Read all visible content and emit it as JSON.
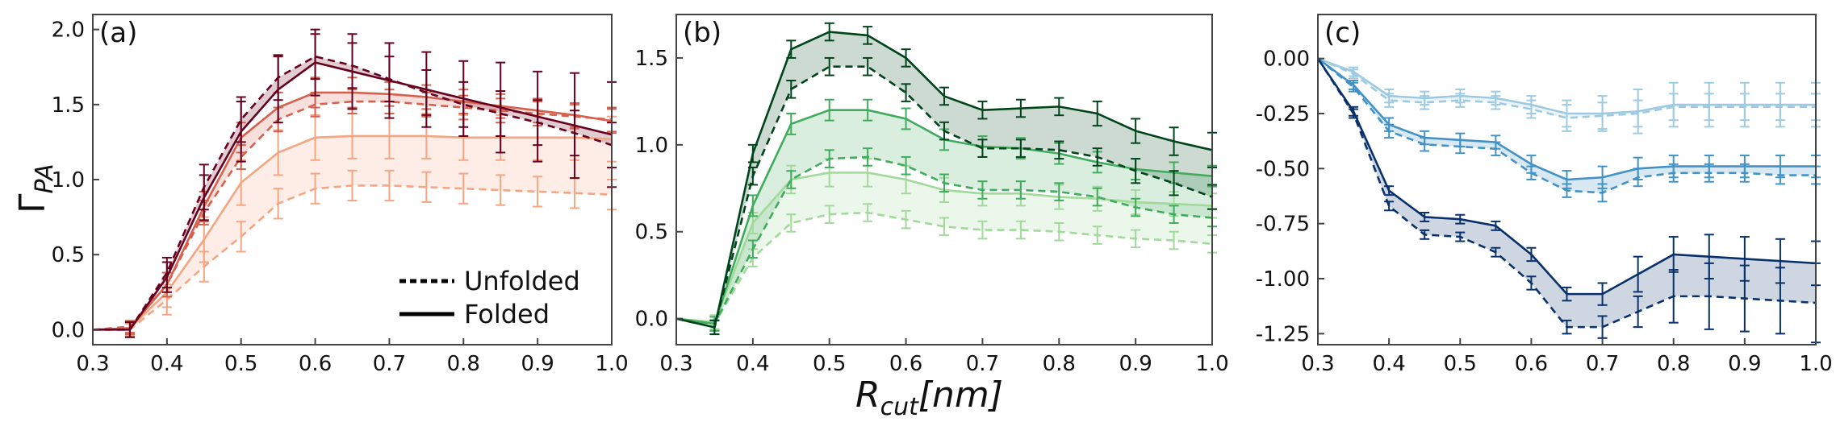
{
  "figure": {
    "ylabel_main": "Γ",
    "ylabel_sub": "PA",
    "xlabel_main": "R",
    "xlabel_sub": "cut",
    "xlabel_unit": "[nm]"
  },
  "legend": {
    "unfolded": "Unfolded",
    "folded": "Folded"
  },
  "chart_data": [
    {
      "type": "line",
      "title": "(a)",
      "xlabel": "R_cut [nm]",
      "ylabel": "Γ_PA",
      "xlim": [
        0.3,
        1.0
      ],
      "ylim": [
        -0.1,
        2.1
      ],
      "xticks": [
        "0.3",
        "0.4",
        "0.5",
        "0.6",
        "0.7",
        "0.8",
        "0.9",
        "1.0"
      ],
      "yticks": [
        "0.0",
        "0.5",
        "1.0",
        "1.5",
        "2.0"
      ],
      "ytick_values": [
        0.0,
        0.5,
        1.0,
        1.5,
        2.0
      ],
      "x": [
        0.3,
        0.35,
        0.4,
        0.45,
        0.5,
        0.55,
        0.6,
        0.65,
        0.7,
        0.75,
        0.8,
        0.85,
        0.9,
        0.95,
        1.0
      ],
      "pairs": [
        {
          "color": "#f4a582",
          "folded": {
            "name": "Folded",
            "values": [
              0,
              0.01,
              0.25,
              0.6,
              0.98,
              1.18,
              1.28,
              1.29,
              1.29,
              1.29,
              1.28,
              1.28,
              1.28,
              1.28,
              1.27
            ],
            "err": [
              0,
              0.04,
              0.1,
              0.15,
              0.15,
              0.15,
              0.15,
              0.15,
              0.15,
              0.15,
              0.15,
              0.15,
              0.15,
              0.15,
              0.15
            ]
          },
          "unfolded": {
            "name": "Unfolded",
            "values": [
              0,
              0.0,
              0.2,
              0.42,
              0.62,
              0.84,
              0.94,
              0.96,
              0.96,
              0.95,
              0.94,
              0.93,
              0.92,
              0.91,
              0.9
            ],
            "err": [
              0,
              0.04,
              0.1,
              0.1,
              0.1,
              0.1,
              0.1,
              0.1,
              0.1,
              0.1,
              0.1,
              0.1,
              0.1,
              0.1,
              0.1
            ]
          }
        },
        {
          "color": "#d6604d",
          "folded": {
            "name": "Folded",
            "values": [
              0,
              0.01,
              0.3,
              0.82,
              1.28,
              1.48,
              1.58,
              1.58,
              1.57,
              1.55,
              1.52,
              1.49,
              1.46,
              1.43,
              1.39
            ],
            "err": [
              0,
              0.04,
              0.08,
              0.1,
              0.1,
              0.1,
              0.1,
              0.1,
              0.08,
              0.08,
              0.08,
              0.08,
              0.08,
              0.08,
              0.08
            ]
          },
          "unfolded": {
            "name": "Unfolded",
            "values": [
              0,
              0.02,
              0.3,
              0.78,
              1.15,
              1.4,
              1.5,
              1.52,
              1.52,
              1.5,
              1.48,
              1.46,
              1.44,
              1.42,
              1.4
            ],
            "err": [
              0,
              0.04,
              0.08,
              0.08,
              0.08,
              0.08,
              0.08,
              0.08,
              0.08,
              0.08,
              0.08,
              0.08,
              0.08,
              0.08,
              0.08
            ]
          }
        },
        {
          "color": "#67001f",
          "folded": {
            "name": "Folded",
            "values": [
              0,
              0.0,
              0.35,
              0.88,
              1.32,
              1.6,
              1.78,
              1.72,
              1.66,
              1.6,
              1.54,
              1.48,
              1.42,
              1.36,
              1.3
            ],
            "err": [
              0,
              0.05,
              0.1,
              0.15,
              0.2,
              0.22,
              0.22,
              0.25,
              0.25,
              0.25,
              0.25,
              0.3,
              0.3,
              0.35,
              0.35
            ]
          },
          "unfolded": {
            "name": "Unfolded",
            "values": [
              0,
              0.0,
              0.38,
              0.95,
              1.4,
              1.68,
              1.82,
              1.76,
              1.67,
              1.58,
              1.5,
              1.44,
              1.38,
              1.31,
              1.23
            ],
            "err": [
              0,
              0.05,
              0.1,
              0.15,
              0.15,
              0.15,
              0.15,
              0.15,
              0.15,
              0.15,
              0.15,
              0.15,
              0.15,
              0.15,
              0.15
            ]
          }
        }
      ]
    },
    {
      "type": "line",
      "title": "(b)",
      "xlabel": "R_cut [nm]",
      "ylabel": "Γ_PA",
      "xlim": [
        0.3,
        1.0
      ],
      "ylim": [
        -0.15,
        1.75
      ],
      "xticks": [
        "0.3",
        "0.4",
        "0.5",
        "0.6",
        "0.7",
        "0.8",
        "0.9",
        "1.0"
      ],
      "yticks": [
        "0.0",
        "0.5",
        "1.0",
        "1.5"
      ],
      "ytick_values": [
        0.0,
        0.5,
        1.0,
        1.5
      ],
      "x": [
        0.3,
        0.35,
        0.4,
        0.45,
        0.5,
        0.55,
        0.6,
        0.65,
        0.7,
        0.75,
        0.8,
        0.85,
        0.9,
        0.95,
        1.0
      ],
      "pairs": [
        {
          "color": "#a1d99b",
          "folded": {
            "name": "Folded",
            "values": [
              0,
              -0.02,
              0.55,
              0.8,
              0.84,
              0.84,
              0.8,
              0.74,
              0.72,
              0.72,
              0.7,
              0.69,
              0.67,
              0.66,
              0.65
            ],
            "err": [
              0,
              0.04,
              0.06,
              0.08,
              0.08,
              0.08,
              0.08,
              0.07,
              0.07,
              0.07,
              0.07,
              0.07,
              0.07,
              0.07,
              0.07
            ]
          },
          "unfolded": {
            "name": "Unfolded",
            "values": [
              0,
              -0.03,
              0.35,
              0.55,
              0.6,
              0.61,
              0.57,
              0.53,
              0.51,
              0.51,
              0.5,
              0.48,
              0.46,
              0.45,
              0.43
            ],
            "err": [
              0,
              0.04,
              0.05,
              0.05,
              0.05,
              0.05,
              0.05,
              0.05,
              0.05,
              0.05,
              0.05,
              0.05,
              0.05,
              0.05,
              0.05
            ]
          }
        },
        {
          "color": "#41ab5d",
          "folded": {
            "name": "Folded",
            "values": [
              0,
              -0.03,
              0.65,
              1.12,
              1.2,
              1.2,
              1.15,
              1.03,
              0.99,
              0.98,
              0.95,
              0.9,
              0.86,
              0.84,
              0.82
            ],
            "err": [
              0,
              0.04,
              0.06,
              0.06,
              0.06,
              0.06,
              0.06,
              0.06,
              0.06,
              0.06,
              0.06,
              0.06,
              0.06,
              0.06,
              0.06
            ]
          },
          "unfolded": {
            "name": "Unfolded",
            "values": [
              0,
              -0.03,
              0.4,
              0.8,
              0.92,
              0.93,
              0.88,
              0.78,
              0.74,
              0.74,
              0.73,
              0.7,
              0.64,
              0.6,
              0.58
            ],
            "err": [
              0,
              0.04,
              0.05,
              0.05,
              0.05,
              0.05,
              0.05,
              0.05,
              0.05,
              0.05,
              0.05,
              0.05,
              0.05,
              0.05,
              0.05
            ]
          }
        },
        {
          "color": "#00441b",
          "folded": {
            "name": "Folded",
            "values": [
              0,
              -0.05,
              0.95,
              1.55,
              1.65,
              1.63,
              1.5,
              1.28,
              1.2,
              1.21,
              1.22,
              1.18,
              1.08,
              1.02,
              0.97
            ],
            "err": [
              0,
              0.04,
              0.05,
              0.05,
              0.05,
              0.05,
              0.05,
              0.05,
              0.05,
              0.05,
              0.05,
              0.07,
              0.07,
              0.08,
              0.1
            ]
          },
          "unfolded": {
            "name": "Unfolded",
            "values": [
              0,
              -0.05,
              0.82,
              1.32,
              1.45,
              1.45,
              1.3,
              1.08,
              0.98,
              0.98,
              0.97,
              0.93,
              0.85,
              0.78,
              0.7
            ],
            "err": [
              0,
              0.04,
              0.05,
              0.05,
              0.05,
              0.05,
              0.05,
              0.05,
              0.05,
              0.05,
              0.05,
              0.05,
              0.07,
              0.07,
              0.07
            ]
          }
        }
      ]
    },
    {
      "type": "line",
      "title": "(c)",
      "xlabel": "R_cut [nm]",
      "ylabel": "Γ_PA",
      "xlim": [
        0.3,
        1.0
      ],
      "ylim": [
        -1.3,
        0.2
      ],
      "xticks": [
        "0.3",
        "0.4",
        "0.5",
        "0.6",
        "0.7",
        "0.8",
        "0.9",
        "1.0"
      ],
      "yticks": [
        "0.00",
        "-0.25",
        "-0.50",
        "-0.75",
        "-1.00",
        "-1.25"
      ],
      "ytick_values": [
        0.0,
        -0.25,
        -0.5,
        -0.75,
        -1.0,
        -1.25
      ],
      "x": [
        0.3,
        0.35,
        0.4,
        0.45,
        0.5,
        0.55,
        0.6,
        0.65,
        0.7,
        0.75,
        0.8,
        0.85,
        0.9,
        0.95,
        1.0
      ],
      "pairs": [
        {
          "color": "#9ecae1",
          "folded": {
            "name": "Folded",
            "values": [
              0,
              -0.06,
              -0.17,
              -0.18,
              -0.17,
              -0.18,
              -0.21,
              -0.25,
              -0.25,
              -0.24,
              -0.21,
              -0.21,
              -0.21,
              -0.21,
              -0.21
            ],
            "err": [
              0,
              0.02,
              0.03,
              0.03,
              0.03,
              0.03,
              0.04,
              0.06,
              0.08,
              0.1,
              0.1,
              0.1,
              0.1,
              0.1,
              0.1
            ]
          },
          "unfolded": {
            "name": "Unfolded",
            "values": [
              0,
              -0.07,
              -0.19,
              -0.2,
              -0.19,
              -0.2,
              -0.23,
              -0.27,
              -0.26,
              -0.25,
              -0.22,
              -0.22,
              -0.22,
              -0.22,
              -0.22
            ],
            "err": [
              0,
              0.02,
              0.03,
              0.03,
              0.03,
              0.03,
              0.04,
              0.06,
              0.06,
              0.06,
              0.06,
              0.06,
              0.06,
              0.06,
              0.06
            ]
          }
        },
        {
          "color": "#4292c6",
          "folded": {
            "name": "Folded",
            "values": [
              0,
              -0.12,
              -0.3,
              -0.36,
              -0.37,
              -0.38,
              -0.48,
              -0.55,
              -0.54,
              -0.5,
              -0.49,
              -0.49,
              -0.49,
              -0.49,
              -0.49
            ],
            "err": [
              0,
              0.02,
              0.03,
              0.03,
              0.03,
              0.03,
              0.04,
              0.04,
              0.05,
              0.05,
              0.05,
              0.05,
              0.05,
              0.05,
              0.05
            ]
          },
          "unfolded": {
            "name": "Unfolded",
            "values": [
              0,
              -0.13,
              -0.33,
              -0.39,
              -0.4,
              -0.41,
              -0.52,
              -0.6,
              -0.61,
              -0.54,
              -0.52,
              -0.52,
              -0.52,
              -0.53,
              -0.53
            ],
            "err": [
              0,
              0.02,
              0.03,
              0.03,
              0.03,
              0.03,
              0.03,
              0.03,
              0.04,
              0.04,
              0.04,
              0.04,
              0.04,
              0.04,
              0.04
            ]
          }
        },
        {
          "color": "#08306b",
          "folded": {
            "name": "Folded",
            "values": [
              0,
              -0.24,
              -0.6,
              -0.72,
              -0.73,
              -0.76,
              -0.89,
              -1.07,
              -1.07,
              -0.98,
              -0.89,
              -0.9,
              -0.91,
              -0.92,
              -0.93
            ],
            "err": [
              0,
              0.02,
              0.02,
              0.02,
              0.02,
              0.02,
              0.03,
              0.03,
              0.05,
              0.08,
              0.08,
              0.1,
              0.1,
              0.1,
              0.1
            ]
          },
          "unfolded": {
            "name": "Unfolded",
            "values": [
              0,
              -0.25,
              -0.67,
              -0.8,
              -0.81,
              -0.88,
              -1.02,
              -1.22,
              -1.22,
              -1.15,
              -1.08,
              -1.08,
              -1.09,
              -1.1,
              -1.11
            ],
            "err": [
              0,
              0.02,
              0.02,
              0.02,
              0.02,
              0.02,
              0.03,
              0.03,
              0.05,
              0.07,
              0.12,
              0.15,
              0.15,
              0.15,
              0.18
            ]
          }
        }
      ]
    }
  ]
}
